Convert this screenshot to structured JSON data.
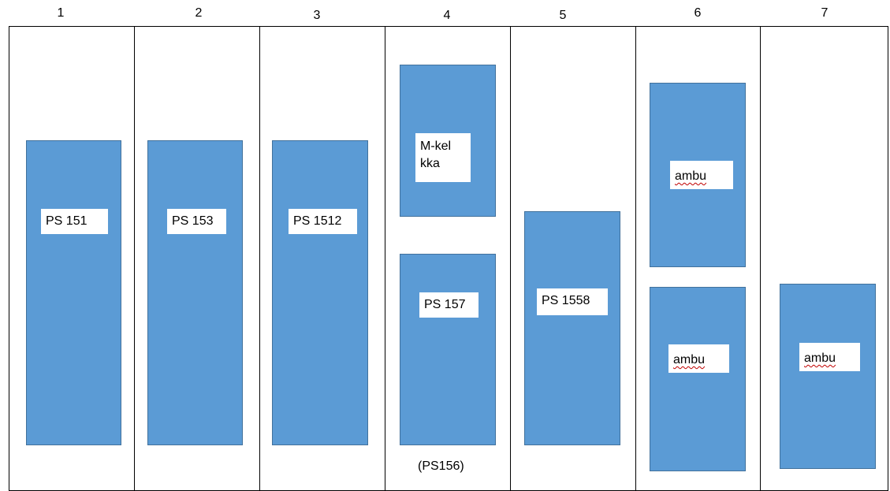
{
  "columns": [
    "1",
    "2",
    "3",
    "4",
    "5",
    "6",
    "7"
  ],
  "blocks": [
    {
      "column": "1",
      "label": "PS 151"
    },
    {
      "column": "2",
      "label": "PS 153"
    },
    {
      "column": "3",
      "label": "PS 1512"
    },
    {
      "column": "4",
      "label": "M-kelkka"
    },
    {
      "column": "4",
      "label": "PS 157"
    },
    {
      "column": "5",
      "label": "PS 1558"
    },
    {
      "column": "6",
      "label": "ambu"
    },
    {
      "column": "6",
      "label": "ambu"
    },
    {
      "column": "7",
      "label": "ambu"
    }
  ],
  "notes": {
    "column_4_bottom": "(PS156)"
  },
  "colors": {
    "block_fill": "#5b9bd5",
    "block_border": "#41719c",
    "label_background": "#ffffff",
    "grid_line": "#000000"
  }
}
